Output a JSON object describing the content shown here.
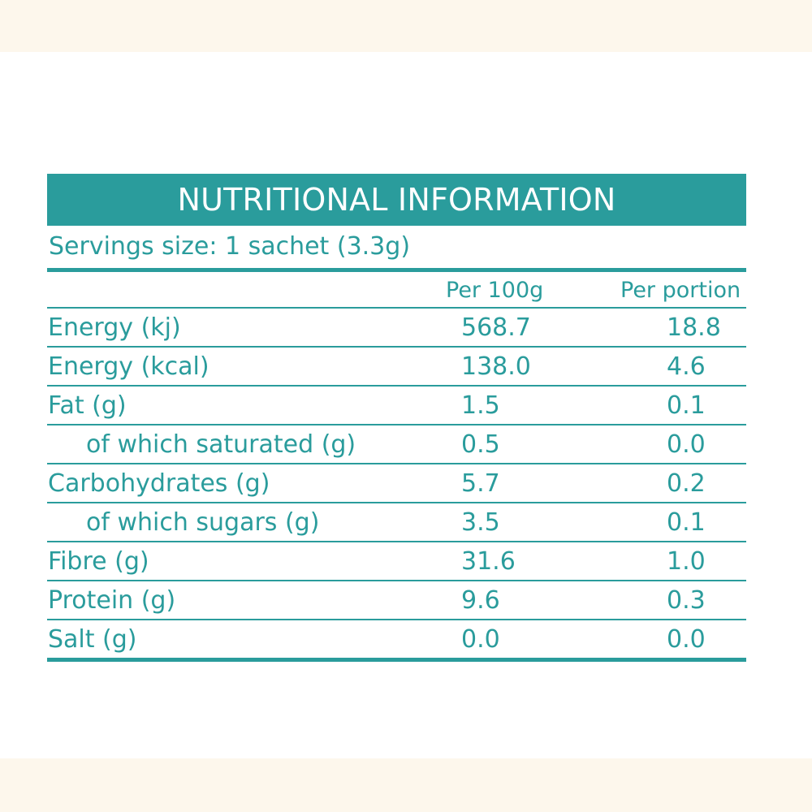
{
  "title": "NUTRITIONAL INFORMATION",
  "serving": "Servings size: 1 sachet (3.3g)",
  "headers": {
    "per100": "Per 100g",
    "perportion": "Per portion"
  },
  "rows": [
    {
      "label": "Energy (kj)",
      "per100": "568.7",
      "perportion": "18.8"
    },
    {
      "label": "Energy (kcal)",
      "per100": "138.0",
      "perportion": "4.6"
    },
    {
      "label": "Fat (g)",
      "per100": "1.5",
      "perportion": "0.1"
    },
    {
      "label": "of which saturated (g)",
      "per100": "0.5",
      "perportion": "0.0"
    },
    {
      "label": "Carbohydrates (g)",
      "per100": "5.7",
      "perportion": "0.2"
    },
    {
      "label": "of which sugars (g)",
      "per100": "3.5",
      "perportion": "0.1"
    },
    {
      "label": "Fibre (g)",
      "per100": "31.6",
      "perportion": "1.0"
    },
    {
      "label": "Protein (g)",
      "per100": "9.6",
      "perportion": "0.3"
    },
    {
      "label": "Salt (g)",
      "per100": "0.0",
      "perportion": "0.0"
    }
  ],
  "colors": {
    "accent": "#2a9c9c",
    "band": "#fdf7ec"
  }
}
